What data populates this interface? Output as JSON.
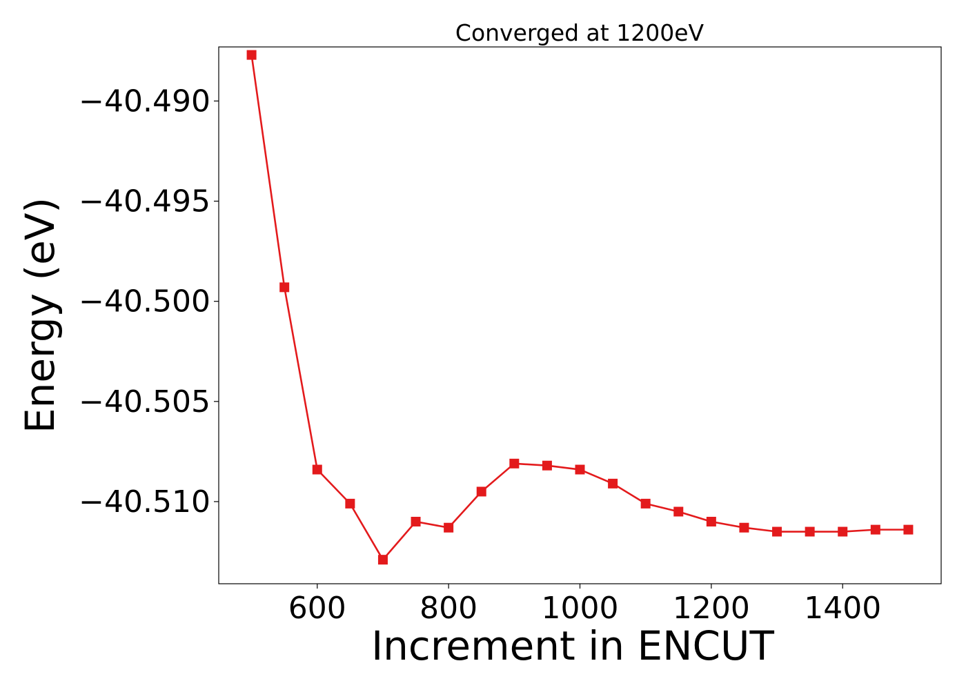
{
  "chart_data": {
    "type": "line",
    "title": "Converged at 1200eV",
    "xlabel": "Increment in ENCUT",
    "ylabel": "Energy (eV)",
    "xlim": [
      450,
      1550
    ],
    "ylim": [
      -40.5141,
      -40.4873
    ],
    "x_ticks": [
      600,
      800,
      1000,
      1200,
      1400
    ],
    "x_tick_labels": [
      "600",
      "800",
      "1000",
      "1200",
      "1400"
    ],
    "y_ticks": [
      -40.49,
      -40.495,
      -40.5,
      -40.505,
      -40.51
    ],
    "y_tick_labels": [
      "−40.490",
      "−40.495",
      "−40.500",
      "−40.505",
      "−40.510"
    ],
    "grid": false,
    "series": [
      {
        "marker": "square",
        "color": "#e31a1c",
        "x": [
          500,
          550,
          600,
          650,
          700,
          750,
          800,
          850,
          900,
          950,
          1000,
          1050,
          1100,
          1150,
          1200,
          1250,
          1300,
          1350,
          1400,
          1450,
          1500
        ],
        "y": [
          -40.4877,
          -40.4993,
          -40.5084,
          -40.5101,
          -40.5129,
          -40.511,
          -40.5113,
          -40.5095,
          -40.5081,
          -40.5082,
          -40.5084,
          -40.5091,
          -40.5101,
          -40.5105,
          -40.511,
          -40.5113,
          -40.5115,
          -40.5115,
          -40.5115,
          -40.5114,
          -40.5114
        ]
      }
    ]
  }
}
